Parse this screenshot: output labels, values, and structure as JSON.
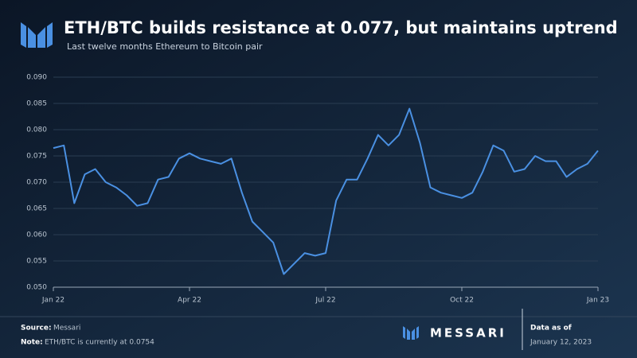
{
  "chart_data": {
    "type": "line",
    "title": "ETH/BTC builds resistance at 0.077, but maintains uptrend",
    "subtitle": "Last twelve months Ethereum to Bitcoin pair",
    "categories": [
      "Jan 22",
      null,
      null,
      null,
      null,
      null,
      null,
      null,
      null,
      null,
      null,
      null,
      null,
      "Apr 22",
      null,
      null,
      null,
      null,
      null,
      null,
      null,
      null,
      null,
      null,
      null,
      null,
      "Jul 22",
      null,
      null,
      null,
      null,
      null,
      null,
      null,
      null,
      null,
      null,
      null,
      null,
      "Oct 22",
      null,
      null,
      null,
      null,
      null,
      null,
      null,
      null,
      null,
      null,
      null,
      null,
      "Jan 23"
    ],
    "values": [
      0.0765,
      0.077,
      0.066,
      0.0715,
      0.0725,
      0.07,
      0.069,
      0.0675,
      0.0655,
      0.066,
      0.0705,
      0.071,
      0.0745,
      0.0755,
      0.0745,
      0.074,
      0.0735,
      0.0745,
      0.068,
      0.0625,
      0.0605,
      0.0585,
      0.0525,
      0.0545,
      0.0565,
      0.056,
      0.0565,
      0.0665,
      0.0705,
      0.0705,
      0.0745,
      0.079,
      0.077,
      0.079,
      0.084,
      0.0775,
      0.069,
      0.068,
      0.0675,
      0.067,
      0.068,
      0.072,
      0.077,
      0.076,
      0.072,
      0.0725,
      0.075,
      0.074,
      0.074,
      0.071,
      0.0725,
      0.0735,
      0.076
    ],
    "color": "#4a90e2",
    "ylim": [
      0.05,
      0.09
    ],
    "yticks": [
      {
        "value": 0.05,
        "label": "0.050"
      },
      {
        "value": 0.055,
        "label": "0.055"
      },
      {
        "value": 0.06,
        "label": "0.060"
      },
      {
        "value": 0.065,
        "label": "0.065"
      },
      {
        "value": 0.07,
        "label": "0.070"
      },
      {
        "value": 0.075,
        "label": "0.075"
      },
      {
        "value": 0.08,
        "label": "0.080"
      },
      {
        "value": 0.085,
        "label": "0.085"
      },
      {
        "value": 0.09,
        "label": "0.090"
      }
    ],
    "grid": true
  },
  "footer": {
    "source_label": "Source:",
    "source": "Messari",
    "note_label": "Note:",
    "note": "ETH/BTC  is currently at 0.0754",
    "brand": "MESSARI",
    "data_as_of": "Data as of",
    "date": "January 12, 2023"
  }
}
